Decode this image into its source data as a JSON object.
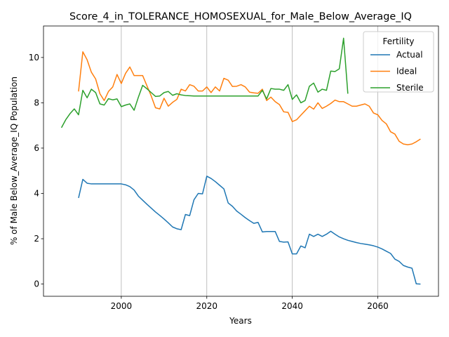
{
  "chart_data": {
    "type": "line",
    "title": "Score_4_in_TOLERANCE_HOMOSEXUAL_for_Male_Below_Average_IQ",
    "x_label": "Years",
    "y_label": "% of Male Below_Average_IQ Population",
    "legend_title": "Fertility",
    "legend": "upper right",
    "grid": "x",
    "x": [
      1986,
      1987,
      1988,
      1989,
      1990,
      1991,
      1992,
      1993,
      1994,
      1995,
      1996,
      1997,
      1998,
      1999,
      2000,
      2001,
      2002,
      2003,
      2004,
      2005,
      2006,
      2007,
      2008,
      2009,
      2010,
      2011,
      2012,
      2013,
      2014,
      2015,
      2016,
      2017,
      2018,
      2019,
      2020,
      2021,
      2022,
      2023,
      2024,
      2025,
      2026,
      2027,
      2028,
      2029,
      2030,
      2031,
      2032,
      2033,
      2034,
      2035,
      2036,
      2037,
      2038,
      2039,
      2040,
      2041,
      2042,
      2043,
      2044,
      2045,
      2046,
      2047,
      2048,
      2049,
      2050,
      2051,
      2052,
      2053,
      2054,
      2055,
      2056,
      2057,
      2058,
      2059,
      2060,
      2061,
      2062,
      2063,
      2064,
      2065,
      2066,
      2067,
      2068,
      2069,
      2070
    ],
    "xlim": [
      1981.8,
      2074.2
    ],
    "xticks": [
      2000,
      2020,
      2040,
      2060
    ],
    "ylim": [
      -0.54,
      11.39
    ],
    "yticks": [
      0,
      2,
      4,
      6,
      8,
      10
    ],
    "series": [
      {
        "name": "Actual",
        "color": "#1f77b4",
        "values": [
          null,
          null,
          null,
          null,
          3.8,
          4.62,
          4.45,
          4.42,
          4.42,
          4.42,
          4.42,
          4.42,
          4.42,
          4.42,
          4.42,
          4.38,
          4.3,
          4.15,
          3.88,
          3.7,
          3.52,
          3.35,
          3.18,
          3.03,
          2.87,
          2.7,
          2.52,
          2.44,
          2.4,
          3.07,
          3.02,
          3.72,
          4.0,
          3.98,
          4.76,
          4.66,
          4.52,
          4.36,
          4.2,
          3.58,
          3.43,
          3.22,
          3.08,
          2.93,
          2.8,
          2.68,
          2.72,
          2.3,
          2.32,
          2.32,
          2.32,
          1.88,
          1.85,
          1.86,
          1.33,
          1.33,
          1.68,
          1.6,
          2.2,
          2.1,
          2.2,
          2.1,
          2.2,
          2.33,
          2.2,
          2.08,
          2.0,
          1.93,
          1.88,
          1.83,
          1.79,
          1.76,
          1.73,
          1.69,
          1.63,
          1.55,
          1.45,
          1.35,
          1.1,
          1.0,
          0.82,
          0.75,
          0.7,
          0.01,
          0.0
        ]
      },
      {
        "name": "Ideal",
        "color": "#ff7f0e",
        "values": [
          null,
          null,
          null,
          null,
          8.5,
          10.25,
          9.9,
          9.35,
          9.05,
          8.4,
          8.1,
          8.5,
          8.7,
          9.25,
          8.85,
          9.3,
          9.58,
          9.2,
          9.2,
          9.2,
          8.75,
          8.3,
          7.78,
          7.73,
          8.2,
          7.85,
          8.02,
          8.15,
          8.6,
          8.52,
          8.8,
          8.73,
          8.52,
          8.52,
          8.7,
          8.45,
          8.7,
          8.52,
          9.08,
          9.0,
          8.72,
          8.73,
          8.8,
          8.7,
          8.47,
          8.44,
          8.42,
          8.6,
          8.1,
          8.25,
          8.05,
          7.92,
          7.6,
          7.58,
          7.17,
          7.25,
          7.45,
          7.65,
          7.85,
          7.72,
          8.0,
          7.75,
          7.85,
          7.97,
          8.12,
          8.05,
          8.05,
          7.95,
          7.85,
          7.85,
          7.9,
          7.95,
          7.85,
          7.55,
          7.47,
          7.22,
          7.07,
          6.72,
          6.62,
          6.3,
          6.18,
          6.15,
          6.18,
          6.28,
          6.4
        ]
      },
      {
        "name": "Sterile",
        "color": "#2ca02c",
        "values": [
          6.9,
          7.25,
          7.52,
          7.73,
          7.47,
          8.55,
          8.22,
          8.6,
          8.45,
          7.95,
          7.9,
          8.18,
          8.13,
          8.17,
          7.83,
          7.9,
          7.95,
          7.67,
          8.25,
          8.77,
          8.62,
          8.45,
          8.28,
          8.3,
          8.45,
          8.5,
          8.33,
          8.4,
          8.35,
          8.32,
          8.31,
          8.3,
          8.3,
          8.3,
          8.3,
          8.3,
          8.3,
          8.3,
          8.3,
          8.3,
          8.3,
          8.3,
          8.3,
          8.3,
          8.3,
          8.3,
          8.3,
          8.55,
          8.17,
          8.63,
          8.6,
          8.6,
          8.55,
          8.8,
          8.15,
          8.35,
          8.0,
          8.1,
          8.73,
          8.87,
          8.47,
          8.6,
          8.55,
          9.4,
          9.38,
          9.5,
          10.85,
          8.4,
          null,
          null,
          null,
          null,
          null,
          null,
          null,
          null,
          null,
          null,
          null,
          null,
          null,
          null,
          null,
          null,
          null
        ]
      }
    ]
  }
}
